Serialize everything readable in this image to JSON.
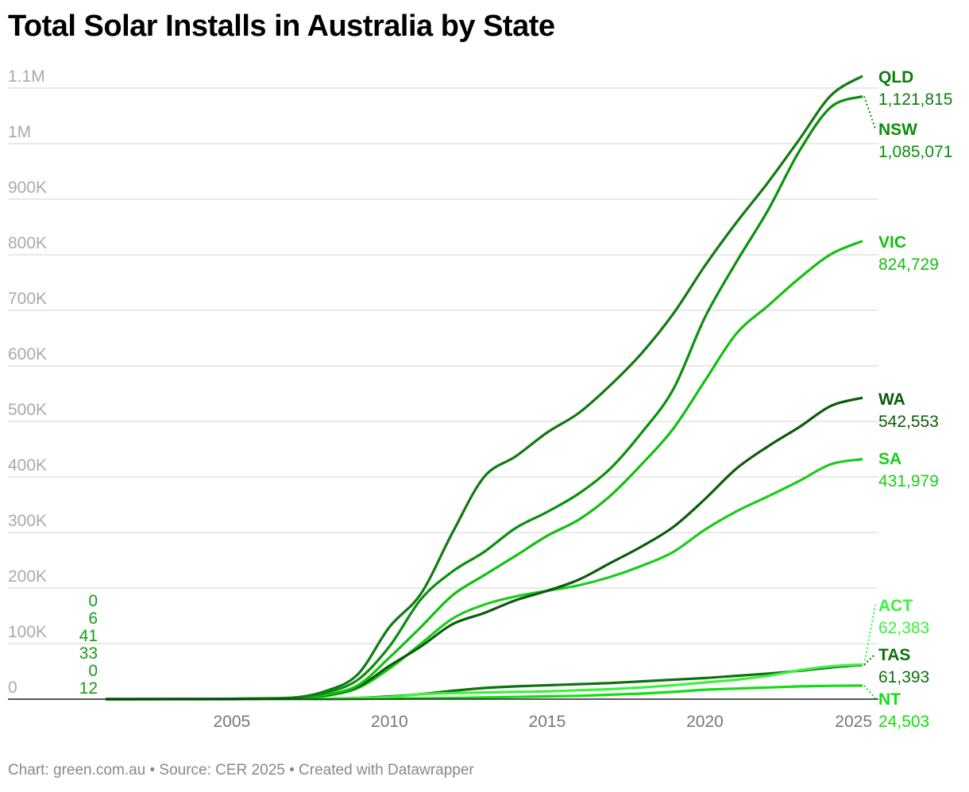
{
  "chart_data": {
    "type": "line",
    "title": "Total Solar Installs in Australia by State",
    "footer": "Chart: green.com.au • Source: CER 2025 • Created with Datawrapper",
    "x": [
      2001,
      2002,
      2003,
      2004,
      2005,
      2006,
      2007,
      2008,
      2009,
      2010,
      2011,
      2012,
      2013,
      2014,
      2015,
      2016,
      2017,
      2018,
      2019,
      2020,
      2021,
      2022,
      2023,
      2024,
      2025
    ],
    "xlim": [
      2001,
      2025
    ],
    "xticks": [
      {
        "v": 2005,
        "label": "2005"
      },
      {
        "v": 2010,
        "label": "2010"
      },
      {
        "v": 2015,
        "label": "2015"
      },
      {
        "v": 2020,
        "label": "2020"
      },
      {
        "v": 2025,
        "label": "2025"
      }
    ],
    "ylim": [
      0,
      1100000
    ],
    "yticks": [
      {
        "v": 0,
        "label": "0"
      },
      {
        "v": 100000,
        "label": "100K"
      },
      {
        "v": 200000,
        "label": "200K"
      },
      {
        "v": 300000,
        "label": "300K"
      },
      {
        "v": 400000,
        "label": "400K"
      },
      {
        "v": 500000,
        "label": "500K"
      },
      {
        "v": 600000,
        "label": "600K"
      },
      {
        "v": 700000,
        "label": "700K"
      },
      {
        "v": 800000,
        "label": "800K"
      },
      {
        "v": 900000,
        "label": "900K"
      },
      {
        "v": 1000000,
        "label": "1M"
      },
      {
        "v": 1100000,
        "label": "1.1M"
      }
    ],
    "grid": true,
    "start_labels": [
      "0",
      "6",
      "41",
      "33",
      "0",
      "12"
    ],
    "series": [
      {
        "name": "QLD",
        "end_label": "1,121,815",
        "color": "#117a11",
        "values": [
          33,
          60,
          150,
          300,
          600,
          1200,
          2500,
          15000,
          45000,
          130000,
          190000,
          300000,
          400000,
          437000,
          480000,
          515000,
          565000,
          623000,
          694000,
          780000,
          858000,
          930000,
          1008000,
          1087000,
          1121815
        ]
      },
      {
        "name": "NSW",
        "end_label": "1,085,071",
        "color": "#0a900a",
        "values": [
          41,
          80,
          200,
          400,
          800,
          1500,
          3000,
          12000,
          35000,
          95000,
          180000,
          230000,
          265000,
          308000,
          337000,
          370000,
          415000,
          480000,
          558000,
          687000,
          787000,
          880000,
          987000,
          1066000,
          1085071
        ]
      },
      {
        "name": "VIC",
        "end_label": "824,729",
        "color": "#13bf13",
        "values": [
          6,
          30,
          90,
          200,
          400,
          800,
          1800,
          8000,
          25000,
          75000,
          130000,
          187000,
          223000,
          258000,
          294000,
          323000,
          366000,
          423000,
          487000,
          573000,
          658000,
          708000,
          758000,
          801000,
          824729
        ]
      },
      {
        "name": "WA",
        "end_label": "542,553",
        "color": "#0b5c0b",
        "values": [
          12,
          40,
          100,
          200,
          400,
          800,
          1800,
          7000,
          22000,
          60000,
          95000,
          135000,
          155000,
          178000,
          195000,
          215000,
          245000,
          275000,
          310000,
          360000,
          415000,
          455000,
          490000,
          528000,
          542553
        ]
      },
      {
        "name": "SA",
        "end_label": "431,979",
        "color": "#1ccc1c",
        "values": [
          0,
          20,
          70,
          150,
          300,
          600,
          1500,
          6000,
          20000,
          55000,
          100000,
          145000,
          170000,
          185000,
          195000,
          205000,
          220000,
          240000,
          265000,
          305000,
          338000,
          365000,
          393000,
          423000,
          431979
        ]
      },
      {
        "name": "ACT",
        "end_label": "62,383",
        "color": "#3cf03c",
        "values": [
          0,
          5,
          10,
          30,
          60,
          120,
          250,
          800,
          2000,
          4000,
          9000,
          11000,
          12000,
          13000,
          14000,
          16000,
          18000,
          21000,
          25000,
          30000,
          35000,
          42000,
          52000,
          59000,
          62383
        ]
      },
      {
        "name": "TAS",
        "end_label": "61,393",
        "color": "#0d700d",
        "values": [
          0,
          5,
          10,
          20,
          50,
          100,
          200,
          600,
          2000,
          5000,
          9000,
          15000,
          20000,
          23000,
          25000,
          27000,
          29000,
          32000,
          35000,
          38000,
          42000,
          46000,
          51000,
          57000,
          61393
        ]
      },
      {
        "name": "NT",
        "end_label": "24,503",
        "color": "#12dd12",
        "values": [
          0,
          2,
          5,
          10,
          20,
          40,
          80,
          200,
          500,
          1000,
          1500,
          2000,
          3000,
          4000,
          5000,
          6000,
          8000,
          10000,
          13000,
          17000,
          19000,
          21000,
          23000,
          24000,
          24503
        ]
      }
    ]
  }
}
